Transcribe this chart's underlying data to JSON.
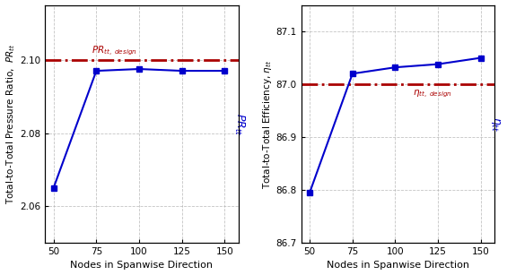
{
  "nodes": [
    50,
    75,
    100,
    125,
    150
  ],
  "pr_values": [
    2.065,
    2.097,
    2.0975,
    2.097,
    2.097
  ],
  "pr_design": 2.1,
  "pr_ylim": [
    2.05,
    2.115
  ],
  "pr_yticks": [
    2.06,
    2.08,
    2.1
  ],
  "pr_ylabel": "Total-to-Total Pressure Ratio,  $\\mathit{PR}_{tt}$",
  "pr_right_label": "$\\mathit{PR}_{tt}$",
  "pr_annotation": "$\\mathit{PR}_{tt,\\ design}$",
  "eff_values": [
    86.795,
    87.02,
    87.032,
    87.038,
    87.05
  ],
  "eff_design": 87.0,
  "eff_ylim": [
    86.7,
    87.15
  ],
  "eff_yticks": [
    86.7,
    86.8,
    86.9,
    87.0,
    87.1
  ],
  "eff_ylabel": "Total-to-Total Efficiency, $\\mathit{\\eta}_{tt}$",
  "eff_right_label": "$\\mathit{\\eta}_{tt}$",
  "eff_annotation": "$\\mathit{\\eta}_{tt,\\ design}$",
  "xlabel": "Nodes in Spanwise Direction",
  "line_color": "#0000CC",
  "design_color": "#AA0000",
  "bg_color": "#ffffff",
  "grid_color": "#aaaaaa",
  "xticks": [
    50,
    75,
    100,
    125,
    150
  ]
}
